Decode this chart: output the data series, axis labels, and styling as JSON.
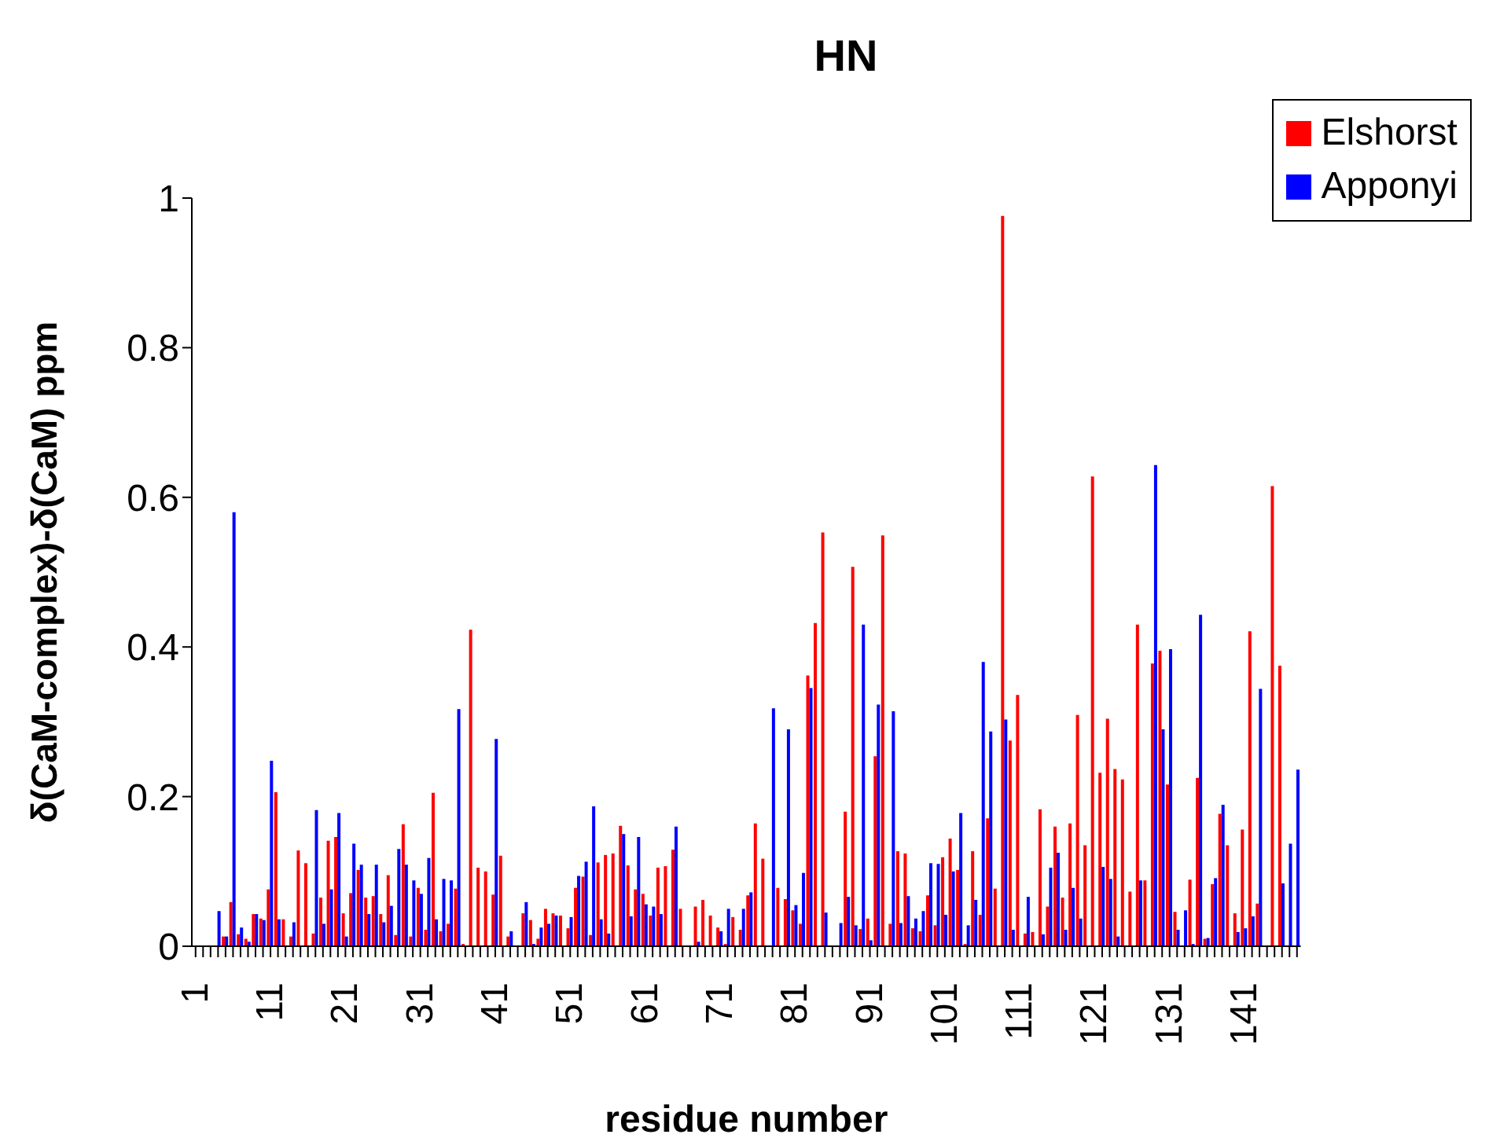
{
  "chart_data": {
    "type": "bar",
    "title": "HN",
    "xlabel": "residue number",
    "ylabel": "δ(CaM-complex)-δ(CaM) ppm",
    "categories": [
      "1",
      null,
      null,
      null,
      null,
      null,
      null,
      null,
      null,
      null,
      "11",
      null,
      null,
      null,
      null,
      null,
      null,
      null,
      null,
      null,
      "21",
      null,
      null,
      null,
      null,
      null,
      null,
      null,
      null,
      null,
      "31",
      null,
      null,
      null,
      null,
      null,
      null,
      null,
      null,
      null,
      "41",
      null,
      null,
      null,
      null,
      null,
      null,
      null,
      null,
      null,
      "51",
      null,
      null,
      null,
      null,
      null,
      null,
      null,
      null,
      null,
      "61",
      null,
      null,
      null,
      null,
      null,
      null,
      null,
      null,
      null,
      "71",
      null,
      null,
      null,
      null,
      null,
      null,
      null,
      null,
      null,
      "81",
      null,
      null,
      null,
      null,
      null,
      null,
      null,
      null,
      null,
      "91",
      null,
      null,
      null,
      null,
      null,
      null,
      null,
      null,
      null,
      "101",
      null,
      null,
      null,
      null,
      null,
      null,
      null,
      null,
      null,
      "111",
      null,
      null,
      null,
      null,
      null,
      null,
      null,
      null,
      null,
      "121",
      null,
      null,
      null,
      null,
      null,
      null,
      null,
      null,
      null,
      "131",
      null,
      null,
      null,
      null,
      null,
      null,
      null,
      null,
      null,
      "141",
      null,
      null,
      null,
      null,
      null,
      null,
      null
    ],
    "series": [
      {
        "name": "Elshorst",
        "color": "#ff0000",
        "values": [
          null,
          null,
          null,
          null,
          0.013,
          0.059,
          0.016,
          0.01,
          0.043,
          0.037,
          0.076,
          0.206,
          0.036,
          0.013,
          0.128,
          0.111,
          0.017,
          0.065,
          0.141,
          0.146,
          0.044,
          0.071,
          0.102,
          0.065,
          0.067,
          0.043,
          0.095,
          0.015,
          0.163,
          0.013,
          0.078,
          0.022,
          0.205,
          0.02,
          0.03,
          0.077,
          0.003,
          0.423,
          0.105,
          0.1,
          0.069,
          0.121,
          0.013,
          null,
          0.044,
          0.035,
          0.01,
          0.05,
          0.044,
          0.041,
          0.024,
          0.078,
          0.093,
          0.015,
          0.112,
          0.122,
          0.124,
          0.161,
          0.108,
          0.076,
          0.07,
          0.041,
          0.105,
          0.107,
          0.129,
          0.05,
          null,
          0.053,
          0.062,
          0.041,
          0.025,
          0.003,
          0.039,
          0.022,
          0.068,
          0.164,
          0.117,
          null,
          0.078,
          0.063,
          0.048,
          0.03,
          0.362,
          0.432,
          0.553,
          null,
          null,
          0.18,
          0.507,
          0.023,
          0.037,
          0.254,
          0.549,
          0.03,
          0.127,
          0.124,
          0.024,
          0.02,
          0.068,
          0.028,
          0.119,
          0.144,
          0.102,
          0.003,
          0.127,
          0.042,
          0.171,
          0.077,
          0.976,
          0.275,
          0.336,
          0.017,
          0.019,
          0.183,
          0.053,
          0.16,
          0.065,
          0.164,
          0.309,
          0.135,
          0.628,
          0.232,
          0.304,
          0.237,
          0.223,
          0.073,
          0.43,
          0.088,
          0.378,
          0.395,
          0.216,
          0.046,
          null,
          0.089,
          0.225,
          0.01,
          0.083,
          0.177,
          0.135,
          0.044,
          0.156,
          0.421,
          0.057,
          null,
          0.615,
          0.375,
          null,
          null
        ]
      },
      {
        "name": "Apponyi",
        "color": "#0000ff",
        "values": [
          null,
          null,
          null,
          0.047,
          0.013,
          0.58,
          0.025,
          0.006,
          0.043,
          0.035,
          0.248,
          0.036,
          null,
          0.032,
          null,
          null,
          0.182,
          0.03,
          0.076,
          0.178,
          0.013,
          0.137,
          0.109,
          0.043,
          0.109,
          0.032,
          0.054,
          0.13,
          0.109,
          0.088,
          0.07,
          0.118,
          0.036,
          0.09,
          0.088,
          0.317,
          null,
          null,
          null,
          null,
          0.277,
          null,
          0.02,
          null,
          0.059,
          0.003,
          0.025,
          0.03,
          0.041,
          null,
          0.039,
          0.094,
          0.113,
          0.187,
          0.036,
          0.017,
          null,
          0.15,
          0.04,
          0.146,
          0.056,
          0.053,
          0.043,
          null,
          0.16,
          null,
          null,
          0.006,
          null,
          null,
          0.02,
          0.05,
          null,
          0.05,
          0.072,
          null,
          null,
          0.318,
          null,
          0.29,
          0.055,
          0.098,
          0.345,
          null,
          0.045,
          null,
          0.031,
          0.066,
          0.028,
          0.43,
          0.008,
          0.323,
          null,
          0.314,
          0.031,
          0.067,
          0.037,
          0.047,
          0.111,
          0.11,
          0.042,
          0.1,
          0.178,
          0.028,
          0.062,
          0.38,
          0.287,
          null,
          0.303,
          0.022,
          null,
          0.066,
          null,
          0.016,
          0.105,
          0.125,
          0.022,
          0.078,
          0.037,
          null,
          null,
          0.106,
          0.09,
          0.013,
          null,
          null,
          0.088,
          null,
          0.643,
          0.29,
          0.397,
          0.022,
          0.048,
          0.003,
          0.443,
          0.011,
          0.091,
          0.189,
          null,
          0.019,
          0.024,
          0.04,
          0.344,
          null,
          null,
          0.084,
          0.137,
          0.236
        ]
      }
    ],
    "ylim": [
      0,
      1
    ],
    "yticks": [
      0,
      0.2,
      0.4,
      0.6,
      0.8,
      1
    ],
    "grid": false,
    "legend": "top right"
  }
}
